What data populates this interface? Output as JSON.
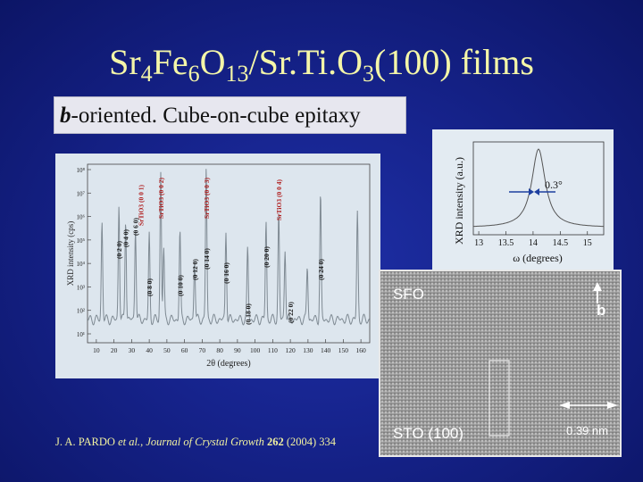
{
  "slide": {
    "title": {
      "parts": [
        {
          "t": "Sr"
        },
        {
          "t": "4",
          "sub": true
        },
        {
          "t": "Fe"
        },
        {
          "t": "6",
          "sub": true
        },
        {
          "t": "O"
        },
        {
          "t": "13",
          "sub": true
        },
        {
          "t": "/Sr.Ti.O"
        },
        {
          "t": "3",
          "sub": true
        },
        {
          "t": "(100) films"
        }
      ]
    },
    "subtitle": {
      "italic_bold": "b",
      "rest": "-oriented. Cube-on-cube epitaxy"
    },
    "citation": {
      "authors": "J. A. PARDO ",
      "etal": "et al.",
      "sep": ", ",
      "journal": "Journal of Crystal Growth",
      "space": " ",
      "volume": "262",
      "rest": " (2004) 334"
    }
  },
  "xrd_plot": {
    "ylabel": "XRD intensity (cps)",
    "xlabel": "2θ (degrees)",
    "x_ticks": [
      "10",
      "20",
      "30",
      "40",
      "50",
      "60",
      "70",
      "80",
      "90",
      "100",
      "110",
      "120",
      "130",
      "140",
      "150",
      "160"
    ],
    "y_ticks": [
      "10¹",
      "10²",
      "10³",
      "10⁴",
      "10⁵",
      "10⁶",
      "10⁷",
      "10⁸"
    ],
    "peak_labels": [
      "(0 2 0)",
      "(0 4 0)",
      "(0 6 0)",
      "(0 8 0)",
      "(0 10 0)",
      "(0 12 0)",
      "(0 14 0)",
      "(0 16 0)",
      "(0 18 0)",
      "(0 20 0)",
      "(0 22 0)",
      "(0 24 0)"
    ],
    "substrate_labels": [
      "SrTiO3 (0 0 1)",
      "SrTiO3 (0 0 2)",
      "SrTiO3 (0 0 3)",
      "SrTiO3 (0 0 4)"
    ]
  },
  "rocking_curve": {
    "ylabel": "XRD intensity (a.u.)",
    "xlabel": "ω (degrees)",
    "x_ticks": [
      "13",
      "13.5",
      "14",
      "14.5",
      "15"
    ],
    "fwhm_label": "0.3°"
  },
  "tem_image": {
    "top_label": "SFO",
    "bottom_label": "STO (100)",
    "axis_label": "b",
    "scale_label": "0.39 nm"
  },
  "colors": {
    "background": "#16238c",
    "title": "#f4f6a8",
    "plot_curve": "#7f8a93",
    "peak_label": "#b02020"
  }
}
